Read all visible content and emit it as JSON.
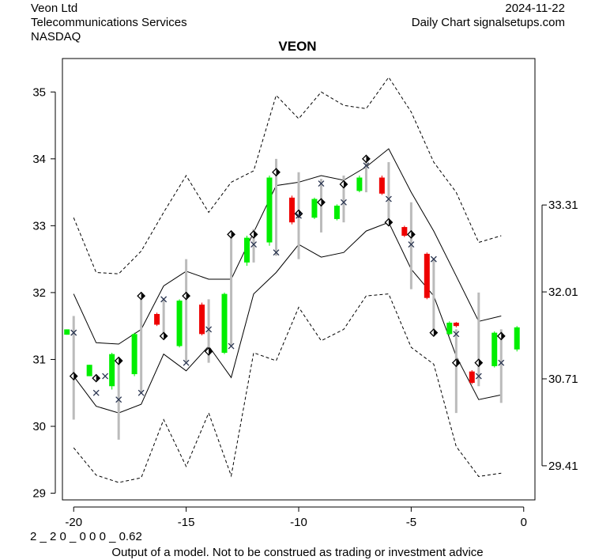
{
  "header": {
    "company": "Veon Ltd",
    "sector": "Telecommunications Services",
    "exchange": "NASDAQ",
    "date": "2024-11-22",
    "source": "Daily Chart signalsetups.com"
  },
  "footer": {
    "code": "2 _ 2 0 _ 0 0 0 _ 0.62",
    "disclaimer": "Output of a model. Not to be construed as trading or investment advice"
  },
  "colors": {
    "up": "#00ee00",
    "down": "#ee0000",
    "range": "#bbbbbb"
  },
  "chart_data": {
    "type": "candlestick",
    "title": "VEON",
    "xlim": [
      -20.5,
      0.5
    ],
    "ylim": [
      28.9,
      35.5
    ],
    "x_ticks": [
      -20,
      -15,
      -10,
      -5,
      0
    ],
    "y_ticks": [
      29,
      30,
      31,
      32,
      33,
      34,
      35
    ],
    "y2_ticks": [
      "29.41",
      "30.71",
      "32.01",
      "33.31"
    ],
    "grid": false,
    "candles": [
      {
        "x": -20.3,
        "open": 31.37,
        "close": 31.45,
        "low": 31.37,
        "high": 31.45,
        "dir": "up"
      },
      {
        "x": -19.3,
        "open": 30.75,
        "close": 30.92,
        "low": 30.75,
        "high": 30.92,
        "dir": "up"
      },
      {
        "x": -18.3,
        "open": 30.6,
        "close": 31.08,
        "low": 30.55,
        "high": 31.1,
        "dir": "up"
      },
      {
        "x": -17.3,
        "open": 30.78,
        "close": 31.38,
        "low": 30.75,
        "high": 31.4,
        "dir": "up"
      },
      {
        "x": -16.3,
        "open": 31.68,
        "close": 31.52,
        "low": 31.5,
        "high": 31.7,
        "dir": "down"
      },
      {
        "x": -15.3,
        "open": 31.2,
        "close": 31.88,
        "low": 31.18,
        "high": 31.9,
        "dir": "up"
      },
      {
        "x": -14.3,
        "open": 31.82,
        "close": 31.38,
        "low": 31.36,
        "high": 31.85,
        "dir": "down"
      },
      {
        "x": -13.3,
        "open": 31.1,
        "close": 31.98,
        "low": 31.08,
        "high": 32.0,
        "dir": "up"
      },
      {
        "x": -12.3,
        "open": 32.45,
        "close": 32.82,
        "low": 32.4,
        "high": 32.85,
        "dir": "up"
      },
      {
        "x": -11.3,
        "open": 32.75,
        "close": 33.72,
        "low": 32.7,
        "high": 33.75,
        "dir": "up"
      },
      {
        "x": -10.3,
        "open": 33.42,
        "close": 33.05,
        "low": 33.02,
        "high": 33.45,
        "dir": "down"
      },
      {
        "x": -9.3,
        "open": 33.12,
        "close": 33.4,
        "low": 33.1,
        "high": 33.42,
        "dir": "up"
      },
      {
        "x": -8.3,
        "open": 33.1,
        "close": 33.3,
        "low": 33.08,
        "high": 33.32,
        "dir": "up"
      },
      {
        "x": -7.3,
        "open": 33.52,
        "close": 33.72,
        "low": 33.5,
        "high": 33.75,
        "dir": "up"
      },
      {
        "x": -6.3,
        "open": 33.72,
        "close": 33.48,
        "low": 33.46,
        "high": 33.75,
        "dir": "down"
      },
      {
        "x": -5.3,
        "open": 32.98,
        "close": 32.85,
        "low": 32.83,
        "high": 33.0,
        "dir": "down"
      },
      {
        "x": -4.3,
        "open": 32.58,
        "close": 31.92,
        "low": 31.9,
        "high": 32.6,
        "dir": "down"
      },
      {
        "x": -3.3,
        "open": 31.38,
        "close": 31.55,
        "low": 31.36,
        "high": 31.57,
        "dir": "up"
      },
      {
        "x": -3.0,
        "open": 31.55,
        "close": 31.5,
        "low": 31.48,
        "high": 31.56,
        "dir": "down"
      },
      {
        "x": -2.3,
        "open": 30.82,
        "close": 30.65,
        "low": 30.63,
        "high": 30.84,
        "dir": "down"
      },
      {
        "x": -1.3,
        "open": 30.9,
        "close": 31.4,
        "low": 30.88,
        "high": 31.42,
        "dir": "up"
      },
      {
        "x": -0.3,
        "open": 31.15,
        "close": 31.48,
        "low": 31.12,
        "high": 31.5,
        "dir": "up"
      }
    ],
    "ranges": [
      {
        "x": -20,
        "low": 30.1,
        "high": 31.65
      },
      {
        "x": -18,
        "low": 29.8,
        "high": 30.95
      },
      {
        "x": -17,
        "low": 30.5,
        "high": 31.95
      },
      {
        "x": -16,
        "low": 31.3,
        "high": 31.9
      },
      {
        "x": -15,
        "low": 30.95,
        "high": 32.5
      },
      {
        "x": -14,
        "low": 30.95,
        "high": 31.9
      },
      {
        "x": -13,
        "low": 31.2,
        "high": 32.85
      },
      {
        "x": -12,
        "low": 32.45,
        "high": 32.95
      },
      {
        "x": -11,
        "low": 32.55,
        "high": 34.0
      },
      {
        "x": -10,
        "low": 32.5,
        "high": 33.8
      },
      {
        "x": -9,
        "low": 32.9,
        "high": 33.7
      },
      {
        "x": -8,
        "low": 33.05,
        "high": 33.75
      },
      {
        "x": -7,
        "low": 33.5,
        "high": 34.0
      },
      {
        "x": -6,
        "low": 33.0,
        "high": 33.95
      },
      {
        "x": -5,
        "low": 32.05,
        "high": 33.35
      },
      {
        "x": -4,
        "low": 31.4,
        "high": 32.5
      },
      {
        "x": -3,
        "low": 30.2,
        "high": 31.45
      },
      {
        "x": -2,
        "low": 30.6,
        "high": 32.0
      },
      {
        "x": -1,
        "low": 30.35,
        "high": 31.45
      }
    ],
    "markers_x": [
      {
        "x": -20,
        "y": 31.4
      },
      {
        "x": -19,
        "y": 30.5
      },
      {
        "x": -18.6,
        "y": 30.75
      },
      {
        "x": -18,
        "y": 30.4
      },
      {
        "x": -17,
        "y": 30.5
      },
      {
        "x": -16,
        "y": 31.9
      },
      {
        "x": -15,
        "y": 30.95
      },
      {
        "x": -14,
        "y": 31.45
      },
      {
        "x": -13,
        "y": 31.2
      },
      {
        "x": -12,
        "y": 32.72
      },
      {
        "x": -11,
        "y": 32.6
      },
      {
        "x": -10,
        "y": 33.15
      },
      {
        "x": -9,
        "y": 33.63
      },
      {
        "x": -8,
        "y": 33.35
      },
      {
        "x": -7,
        "y": 33.9
      },
      {
        "x": -6,
        "y": 33.4
      },
      {
        "x": -5,
        "y": 32.72
      },
      {
        "x": -4,
        "y": 32.5
      },
      {
        "x": -3,
        "y": 31.38
      },
      {
        "x": -2,
        "y": 30.75
      },
      {
        "x": -1,
        "y": 30.95
      }
    ],
    "markers_diamond": [
      {
        "x": -20,
        "y": 30.75
      },
      {
        "x": -19,
        "y": 30.72
      },
      {
        "x": -18,
        "y": 30.98
      },
      {
        "x": -17,
        "y": 31.95
      },
      {
        "x": -16,
        "y": 31.35
      },
      {
        "x": -15,
        "y": 31.95
      },
      {
        "x": -14,
        "y": 31.12
      },
      {
        "x": -13,
        "y": 32.87
      },
      {
        "x": -12,
        "y": 32.87
      },
      {
        "x": -11,
        "y": 33.8
      },
      {
        "x": -10,
        "y": 33.18
      },
      {
        "x": -9,
        "y": 33.35
      },
      {
        "x": -8,
        "y": 33.62
      },
      {
        "x": -7,
        "y": 34.0
      },
      {
        "x": -6,
        "y": 33.05
      },
      {
        "x": -5,
        "y": 32.87
      },
      {
        "x": -4,
        "y": 31.4
      },
      {
        "x": -3,
        "y": 30.95
      },
      {
        "x": -2,
        "y": 30.95
      },
      {
        "x": -1,
        "y": 31.35
      }
    ],
    "band_lines": [
      {
        "style": "solid",
        "points": [
          [
            -20,
            31.98
          ],
          [
            -19,
            31.25
          ],
          [
            -18,
            31.23
          ],
          [
            -17,
            31.45
          ],
          [
            -16,
            32.1
          ],
          [
            -15,
            32.32
          ],
          [
            -14,
            32.2
          ],
          [
            -13,
            32.2
          ],
          [
            -12,
            32.9
          ],
          [
            -11,
            33.6
          ],
          [
            -10,
            33.65
          ],
          [
            -9,
            33.75
          ],
          [
            -8,
            33.68
          ],
          [
            -7,
            33.88
          ],
          [
            -6,
            34.15
          ],
          [
            -5,
            33.5
          ],
          [
            -4,
            32.92
          ],
          [
            -3,
            32.25
          ],
          [
            -2,
            31.57
          ],
          [
            -1,
            31.65
          ]
        ]
      },
      {
        "style": "solid",
        "points": [
          [
            -20,
            30.75
          ],
          [
            -19,
            30.3
          ],
          [
            -18,
            30.2
          ],
          [
            -17,
            30.33
          ],
          [
            -16,
            31.08
          ],
          [
            -15,
            30.83
          ],
          [
            -14,
            31.2
          ],
          [
            -13,
            30.73
          ],
          [
            -12,
            31.98
          ],
          [
            -11,
            32.3
          ],
          [
            -10,
            32.72
          ],
          [
            -9,
            32.53
          ],
          [
            -8,
            32.6
          ],
          [
            -7,
            32.92
          ],
          [
            -6,
            33.05
          ],
          [
            -5,
            32.35
          ],
          [
            -4,
            31.95
          ],
          [
            -3,
            31.05
          ],
          [
            -2,
            30.4
          ],
          [
            -1,
            30.47
          ]
        ]
      },
      {
        "style": "dashed",
        "points": [
          [
            -20,
            33.12
          ],
          [
            -19,
            32.3
          ],
          [
            -18,
            32.28
          ],
          [
            -17,
            32.62
          ],
          [
            -16,
            33.2
          ],
          [
            -15,
            33.75
          ],
          [
            -14,
            33.2
          ],
          [
            -13,
            33.65
          ],
          [
            -12,
            33.82
          ],
          [
            -11,
            34.95
          ],
          [
            -10,
            34.6
          ],
          [
            -9,
            35.0
          ],
          [
            -8,
            34.8
          ],
          [
            -7,
            34.75
          ],
          [
            -6,
            35.22
          ],
          [
            -5,
            34.7
          ],
          [
            -4,
            33.95
          ],
          [
            -3,
            33.5
          ],
          [
            -2,
            32.75
          ],
          [
            -1,
            32.85
          ]
        ]
      },
      {
        "style": "dashed",
        "points": [
          [
            -20,
            29.68
          ],
          [
            -19,
            29.27
          ],
          [
            -18,
            29.16
          ],
          [
            -17,
            29.23
          ],
          [
            -16,
            30.1
          ],
          [
            -15,
            29.4
          ],
          [
            -14,
            30.2
          ],
          [
            -13,
            29.26
          ],
          [
            -12,
            31.1
          ],
          [
            -11,
            30.98
          ],
          [
            -10,
            31.78
          ],
          [
            -9,
            31.28
          ],
          [
            -8,
            31.45
          ],
          [
            -7,
            31.95
          ],
          [
            -6,
            31.98
          ],
          [
            -5,
            31.18
          ],
          [
            -4,
            30.93
          ],
          [
            -3,
            29.7
          ],
          [
            -2,
            29.25
          ],
          [
            -1,
            29.3
          ]
        ]
      }
    ]
  }
}
